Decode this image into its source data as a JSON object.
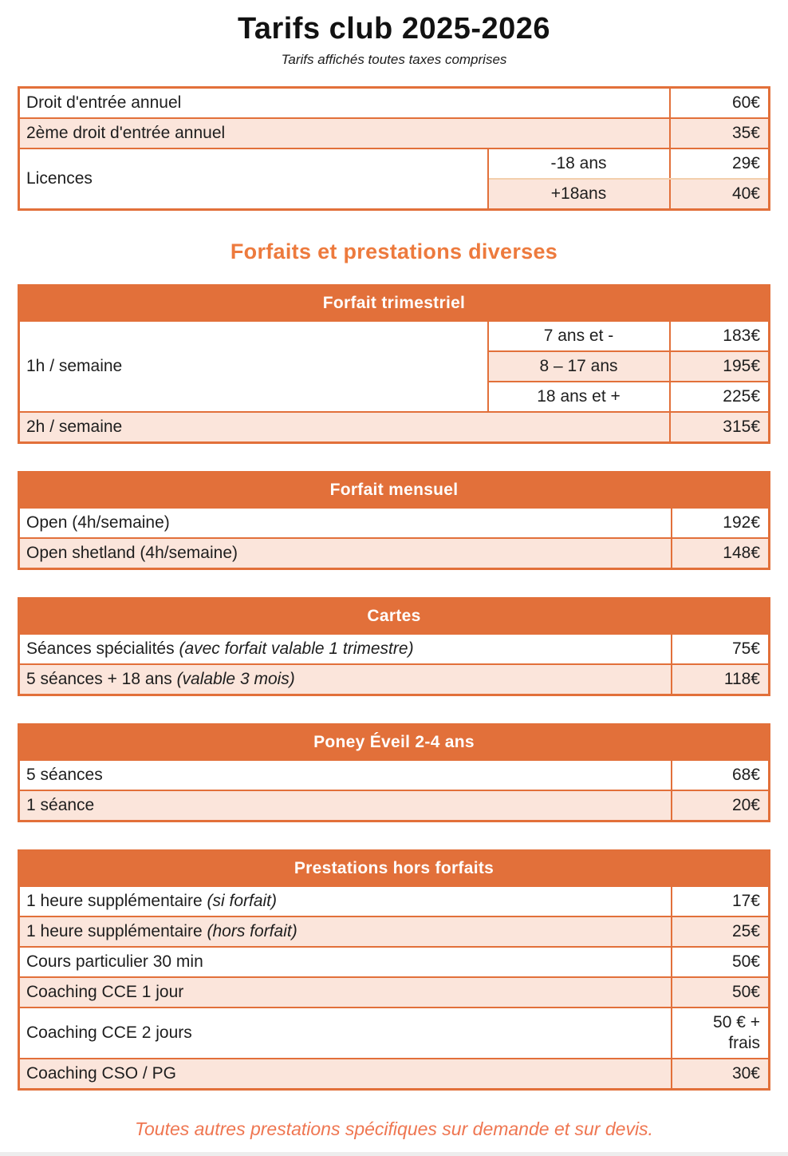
{
  "page": {
    "title": "Tarifs club 2025-2026",
    "subtitle": "Tarifs affichés toutes taxes comprises",
    "section_heading": "Forfaits et prestations diverses",
    "footer_note": "Toutes autres prestations spécifiques sur demande et sur devis."
  },
  "colors": {
    "accent_orange": "#E2703A",
    "row_peach": "#FBE5DB",
    "light_divider": "#F3CFAC",
    "heading_text": "#ED7A3D",
    "footer_text": "#EF7651",
    "body_text": "#1E1E1E"
  },
  "entry_table": {
    "rows": [
      {
        "label": "Droit d'entrée annuel",
        "price": "60€"
      },
      {
        "label": "2ème droit d'entrée annuel",
        "price": "35€"
      },
      {
        "label": "Licences",
        "sub": [
          {
            "label": "-18 ans",
            "price": "29€"
          },
          {
            "label": "+18ans",
            "price": "40€"
          }
        ]
      }
    ]
  },
  "trimestriel": {
    "header": "Forfait trimestriel",
    "row_1h": "1h / semaine",
    "ages": [
      {
        "label": "7 ans et -",
        "price": "183€"
      },
      {
        "label": "8 – 17 ans",
        "price": "195€"
      },
      {
        "label": "18 ans et +",
        "price": "225€"
      }
    ],
    "row_2h": {
      "label": "2h / semaine",
      "price": "315€"
    }
  },
  "mensuel": {
    "header": "Forfait mensuel",
    "rows": [
      {
        "label": "Open (4h/semaine)",
        "price": "192€"
      },
      {
        "label": "Open shetland (4h/semaine)",
        "price": "148€"
      }
    ]
  },
  "cartes": {
    "header": "Cartes",
    "rows": [
      {
        "label": "Séances spécialités",
        "note": "(avec forfait valable 1 trimestre)",
        "price": "75€"
      },
      {
        "label": "5 séances + 18 ans",
        "note": "(valable 3 mois)",
        "price": "118€"
      }
    ]
  },
  "poney": {
    "header": "Poney Éveil 2-4 ans",
    "rows": [
      {
        "label": "5 séances",
        "price": "68€"
      },
      {
        "label": "1 séance",
        "price": "20€"
      }
    ]
  },
  "prestations": {
    "header": "Prestations hors forfaits",
    "rows": [
      {
        "label": "1 heure supplémentaire",
        "note": "(si forfait)",
        "price": "17€"
      },
      {
        "label": "1 heure supplémentaire",
        "note": "(hors forfait)",
        "price": "25€"
      },
      {
        "label": "Cours particulier 30 min",
        "price": "50€"
      },
      {
        "label": "Coaching CCE 1 jour",
        "price": "50€"
      },
      {
        "label": "Coaching CCE 2 jours",
        "price": "50 € + frais"
      },
      {
        "label": "Coaching CSO / PG",
        "price": "30€"
      }
    ]
  }
}
